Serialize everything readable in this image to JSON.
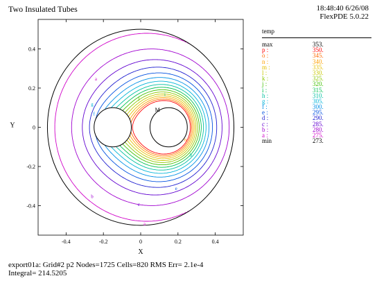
{
  "header": {
    "title": "Two Insulated Tubes",
    "time_date": "18:48:40 6/26/08",
    "software": "FlexPDE 5.0.22"
  },
  "footer": {
    "line1": "export01a:  Grid#2  p2  Nodes=1725 Cells=820 RMS Err= 2.1e-4",
    "line2": "Integral=  214.5205"
  },
  "legend": {
    "title": "temp",
    "rows": [
      {
        "label": "max",
        "value": "353.",
        "color": "#000000"
      },
      {
        "label": "p :",
        "value": "350.",
        "color": "#ff0000"
      },
      {
        "label": "o :",
        "value": "345.",
        "color": "#ff6a00"
      },
      {
        "label": "n :",
        "value": "340.",
        "color": "#ffa000"
      },
      {
        "label": "m :",
        "value": "335.",
        "color": "#e6c000"
      },
      {
        "label": "l :",
        "value": "330.",
        "color": "#c8c800"
      },
      {
        "label": "k :",
        "value": "325.",
        "color": "#8cc800"
      },
      {
        "label": "j :",
        "value": "320.",
        "color": "#40c000"
      },
      {
        "label": "i :",
        "value": "315.",
        "color": "#00c050"
      },
      {
        "label": "h :",
        "value": "310.",
        "color": "#00c0a0"
      },
      {
        "label": "g :",
        "value": "305.",
        "color": "#00b4d8"
      },
      {
        "label": "f :",
        "value": "300.",
        "color": "#0090e6"
      },
      {
        "label": "e :",
        "value": "295.",
        "color": "#0050e0"
      },
      {
        "label": "d :",
        "value": "290.",
        "color": "#1e1ed0"
      },
      {
        "label": "c :",
        "value": "285.",
        "color": "#6000d0"
      },
      {
        "label": "b :",
        "value": "280.",
        "color": "#a000d0"
      },
      {
        "label": "a :",
        "value": "275.",
        "color": "#d000c8"
      },
      {
        "label": "min",
        "value": "273.",
        "color": "#000000"
      }
    ]
  },
  "chart_data": {
    "type": "contour",
    "variable": "temp",
    "xlabel": "X",
    "ylabel": "Y",
    "xlim": [
      -0.55,
      0.55
    ],
    "ylim": [
      -0.55,
      0.55
    ],
    "xticks": [
      "-0.4",
      "-0.2",
      "0",
      "0.2",
      "0.4"
    ],
    "yticks": [
      "0.4",
      "0.2",
      "0",
      "-0.2",
      "-0.4"
    ],
    "outer_boundary": {
      "shape": "circle",
      "cx": 0.0,
      "cy": 0.0,
      "r": 0.5
    },
    "holes": [
      {
        "shape": "circle",
        "cx": -0.15,
        "cy": 0.0,
        "r": 0.1
      },
      {
        "shape": "circle",
        "cx": 0.15,
        "cy": 0.0,
        "r": 0.1
      }
    ],
    "max_marker": {
      "label": "M",
      "x": 0.09,
      "y": 0.09
    },
    "max_value": 353,
    "min_value": 273,
    "contour_levels": [
      {
        "label": "a",
        "value": 275
      },
      {
        "label": "b",
        "value": 280
      },
      {
        "label": "c",
        "value": 285
      },
      {
        "label": "d",
        "value": 290
      },
      {
        "label": "e",
        "value": 295
      },
      {
        "label": "f",
        "value": 300
      },
      {
        "label": "g",
        "value": 305
      },
      {
        "label": "h",
        "value": 310
      },
      {
        "label": "i",
        "value": 315
      },
      {
        "label": "j",
        "value": 320
      },
      {
        "label": "k",
        "value": 325
      },
      {
        "label": "l",
        "value": 330
      },
      {
        "label": "m",
        "value": 335
      },
      {
        "label": "n",
        "value": 340
      },
      {
        "label": "o",
        "value": 345
      },
      {
        "label": "p",
        "value": 350
      }
    ],
    "contour_labels": [
      {
        "label": "a",
        "x": 0.02,
        "y": -0.49
      },
      {
        "label": "a",
        "x": -0.24,
        "y": 0.25
      },
      {
        "label": "b",
        "x": -0.26,
        "y": -0.35
      },
      {
        "label": "c",
        "x": -0.01,
        "y": -0.39
      },
      {
        "label": "e",
        "x": 0.19,
        "y": -0.31
      },
      {
        "label": "i",
        "x": 0.13,
        "y": 0.17
      },
      {
        "label": "j",
        "x": -0.01,
        "y": 0.15
      },
      {
        "label": "h",
        "x": 0.27,
        "y": -0.14
      },
      {
        "label": "g",
        "x": -0.26,
        "y": 0.12
      },
      {
        "label": "f",
        "x": -0.25,
        "y": 0.07
      },
      {
        "label": "n",
        "x": 0.24,
        "y": -0.06
      }
    ]
  }
}
